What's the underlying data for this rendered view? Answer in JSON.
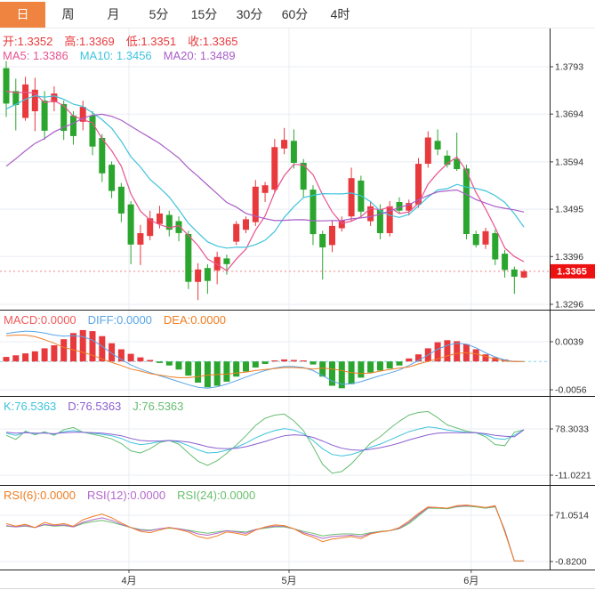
{
  "tabs": {
    "items": [
      {
        "label": "日",
        "selected": true
      },
      {
        "label": "周",
        "selected": false
      },
      {
        "label": "月",
        "selected": false
      },
      {
        "label": "5分",
        "selected": false
      },
      {
        "label": "15分",
        "selected": false
      },
      {
        "label": "30分",
        "selected": false
      },
      {
        "label": "60分",
        "selected": false
      },
      {
        "label": "4时",
        "selected": false
      }
    ]
  },
  "ohlc_header": {
    "open": "开:1.3352",
    "high": "高:1.3369",
    "low": "低:1.3351",
    "close": "收:1.3365"
  },
  "ma_header": {
    "ma5": "MA5: 1.3386",
    "ma10": "MA10: 1.3456",
    "ma20": "MA20: 1.3489"
  },
  "macd_header": {
    "macd": "MACD:0.0000",
    "diff": "DIFF:0.0000",
    "dea": "DEA:0.0000"
  },
  "kdj_header": {
    "k": "K:76.5363",
    "d": "D:76.5363",
    "j": "J:76.5363"
  },
  "rsi_header": {
    "rsi6": "RSI(6):0.0000",
    "rsi12": "RSI(12):0.0000",
    "rsi24": "RSI(24):0.0000"
  },
  "price_flag": "1.3365",
  "colors": {
    "up": "#e8393d",
    "down": "#2aa52e",
    "tab_active_bg": "#ef8440",
    "ohlc_text": "#e8393d",
    "ma5": "#e8538f",
    "ma10": "#3fc3dc",
    "ma20": "#a95ec8",
    "diff": "#58a5e8",
    "dea": "#ef7d22",
    "macd_text": "#ef5a5a",
    "k": "#3fc3dc",
    "d": "#8a5fd0",
    "j": "#67bd72",
    "rsi6": "#ef7d22",
    "rsi12": "#b468cc",
    "rsi24": "#6abf6e",
    "grid": "#e8eef5",
    "divider": "#222222",
    "axis_text": "#333333",
    "dotted_line": "#f08080",
    "zero_dash": "#86d3e8",
    "flag_bg": "#ee1111"
  },
  "chart_data": [
    {
      "type": "candlestick",
      "name": "price",
      "legend": [
        "MA5",
        "MA10",
        "MA20"
      ],
      "ma_periods": [
        5,
        10,
        20
      ],
      "y_ticks": [
        1.3793,
        1.3694,
        1.3594,
        1.3495,
        1.3396,
        1.3296
      ],
      "current_price": 1.3365,
      "x_ticks": [
        {
          "label": "4月",
          "index": 12.8
        },
        {
          "label": "5月",
          "index": 29.5
        },
        {
          "label": "6月",
          "index": 48.5
        }
      ],
      "prior_closes": [
        1.34,
        1.342,
        1.344,
        1.345,
        1.346,
        1.347,
        1.348,
        1.349,
        1.351,
        1.3526,
        1.362,
        1.365,
        1.367,
        1.369,
        1.371,
        1.373,
        1.375,
        1.3755,
        1.3759
      ],
      "ohlc": [
        [
          1.379,
          1.3805,
          1.3688,
          1.3716
        ],
        [
          1.3742,
          1.3768,
          1.366,
          1.3713
        ],
        [
          1.3686,
          1.3772,
          1.368,
          1.3756
        ],
        [
          1.37,
          1.377,
          1.3658,
          1.3745
        ],
        [
          1.3722,
          1.3742,
          1.364,
          1.3659
        ],
        [
          1.3719,
          1.3752,
          1.37,
          1.3737
        ],
        [
          1.3715,
          1.3722,
          1.364,
          1.3659
        ],
        [
          1.3691,
          1.37,
          1.363,
          1.3648
        ],
        [
          1.3678,
          1.3722,
          1.366,
          1.3709
        ],
        [
          1.3691,
          1.37,
          1.3608,
          1.3626
        ],
        [
          1.3644,
          1.3652,
          1.3552,
          1.357
        ],
        [
          1.3588,
          1.3595,
          1.3518,
          1.3533
        ],
        [
          1.3542,
          1.355,
          1.3468,
          1.3486
        ],
        [
          1.3505,
          1.3512,
          1.338,
          1.3421
        ],
        [
          1.3421,
          1.3462,
          1.3378,
          1.3445
        ],
        [
          1.3439,
          1.3492,
          1.343,
          1.3476
        ],
        [
          1.3464,
          1.3502,
          1.3455,
          1.3486
        ],
        [
          1.3483,
          1.3492,
          1.3438,
          1.3452
        ],
        [
          1.347,
          1.348,
          1.3428,
          1.3445
        ],
        [
          1.3443,
          1.345,
          1.3328,
          1.3343
        ],
        [
          1.3343,
          1.3382,
          1.3305,
          1.3369
        ],
        [
          1.3372,
          1.338,
          1.3318,
          1.3345
        ],
        [
          1.3367,
          1.3406,
          1.3338,
          1.3395
        ],
        [
          1.3392,
          1.34,
          1.3358,
          1.338
        ],
        [
          1.3427,
          1.347,
          1.342,
          1.3464
        ],
        [
          1.3452,
          1.348,
          1.3445,
          1.3474
        ],
        [
          1.3468,
          1.3556,
          1.346,
          1.3542
        ],
        [
          1.3529,
          1.3552,
          1.351,
          1.3545
        ],
        [
          1.3536,
          1.3642,
          1.353,
          1.3625
        ],
        [
          1.3622,
          1.3665,
          1.361,
          1.364
        ],
        [
          1.3638,
          1.3662,
          1.358,
          1.3592
        ],
        [
          1.3592,
          1.36,
          1.352,
          1.3536
        ],
        [
          1.3536,
          1.3545,
          1.342,
          1.3443
        ],
        [
          1.3443,
          1.345,
          1.3348,
          1.3415
        ],
        [
          1.342,
          1.3472,
          1.3405,
          1.346
        ],
        [
          1.3455,
          1.348,
          1.3448,
          1.3472
        ],
        [
          1.348,
          1.3582,
          1.347,
          1.356
        ],
        [
          1.3555,
          1.3565,
          1.3478,
          1.349
        ],
        [
          1.347,
          1.3512,
          1.346,
          1.3501
        ],
        [
          1.3495,
          1.3505,
          1.3432,
          1.3445
        ],
        [
          1.3445,
          1.3512,
          1.3438,
          1.3501
        ],
        [
          1.351,
          1.352,
          1.3485,
          1.3492
        ],
        [
          1.3492,
          1.3515,
          1.3482,
          1.3508
        ],
        [
          1.3505,
          1.3602,
          1.3498,
          1.359
        ],
        [
          1.359,
          1.3658,
          1.3582,
          1.3645
        ],
        [
          1.3638,
          1.3662,
          1.3608,
          1.362
        ],
        [
          1.3607,
          1.3618,
          1.3582,
          1.3588
        ],
        [
          1.36,
          1.3655,
          1.3575,
          1.3579
        ],
        [
          1.358,
          1.3588,
          1.3432,
          1.3443
        ],
        [
          1.3443,
          1.345,
          1.3415,
          1.342
        ],
        [
          1.3421,
          1.3456,
          1.3412,
          1.3449
        ],
        [
          1.3445,
          1.3452,
          1.3378,
          1.339
        ],
        [
          1.3402,
          1.341,
          1.3352,
          1.3368
        ],
        [
          1.3369,
          1.3375,
          1.3318,
          1.3354
        ],
        [
          1.3352,
          1.3369,
          1.3351,
          1.3365
        ]
      ]
    },
    {
      "type": "bar",
      "name": "MACD",
      "y_ticks": [
        0.0039,
        -0.0056
      ],
      "hist": [
        0.0009,
        0.0012,
        0.0016,
        0.002,
        0.0026,
        0.0032,
        0.0044,
        0.0056,
        0.0062,
        0.006,
        0.005,
        0.0036,
        0.0024,
        0.0015,
        0.0008,
        0.0003,
        -0.0003,
        -0.0008,
        -0.0016,
        -0.0028,
        -0.0042,
        -0.0051,
        -0.0048,
        -0.004,
        -0.003,
        -0.002,
        -0.0012,
        -0.0005,
        0.0002,
        0.0004,
        0.0003,
        0.0002,
        -0.0006,
        -0.003,
        -0.0048,
        -0.0053,
        -0.0045,
        -0.0032,
        -0.0022,
        -0.0018,
        -0.0014,
        -0.0008,
        0.0006,
        0.0014,
        0.0026,
        0.0038,
        0.0042,
        0.004,
        0.0034,
        0.0024,
        0.0014,
        0.0008,
        0.0004,
        0.0001,
        0.0
      ],
      "diff": [
        0.0055,
        0.0058,
        0.006,
        0.0059,
        0.0056,
        0.0052,
        0.005,
        0.0051,
        0.0049,
        0.0042,
        0.003,
        0.0016,
        0.0004,
        -0.0007,
        -0.0015,
        -0.0022,
        -0.0028,
        -0.0034,
        -0.004,
        -0.0046,
        -0.0051,
        -0.0053,
        -0.005,
        -0.0045,
        -0.0038,
        -0.0031,
        -0.0024,
        -0.0018,
        -0.0013,
        -0.001,
        -0.001,
        -0.0012,
        -0.0018,
        -0.0028,
        -0.0039,
        -0.0045,
        -0.0044,
        -0.004,
        -0.0034,
        -0.0028,
        -0.0023,
        -0.0017,
        -0.0008,
        0.0002,
        0.0013,
        0.0024,
        0.0032,
        0.0036,
        0.0034,
        0.0027,
        0.0017,
        0.0009,
        0.0003,
        0.0,
        0.0
      ],
      "dea": [
        0.0051,
        0.0052,
        0.0052,
        0.0049,
        0.0043,
        0.0036,
        0.0028,
        0.0023,
        0.0018,
        0.0012,
        0.0005,
        -0.0002,
        -0.0008,
        -0.0015,
        -0.0019,
        -0.0024,
        -0.0027,
        -0.003,
        -0.0032,
        -0.0032,
        -0.003,
        -0.0027,
        -0.0026,
        -0.0025,
        -0.0023,
        -0.0021,
        -0.0018,
        -0.0016,
        -0.0014,
        -0.0012,
        -0.0012,
        -0.0013,
        -0.0015,
        -0.0013,
        -0.0015,
        -0.0018,
        -0.0022,
        -0.0024,
        -0.0023,
        -0.0019,
        -0.0016,
        -0.0013,
        -0.0011,
        -0.0005,
        0.0,
        0.0005,
        0.0011,
        0.0016,
        0.0017,
        0.0015,
        0.001,
        0.0005,
        0.0001,
        0.0,
        0.0
      ]
    },
    {
      "type": "line",
      "name": "KDJ",
      "y_ticks": [
        78.3033,
        -11.0221
      ],
      "k": [
        70,
        66,
        72,
        69,
        71,
        68,
        73,
        75,
        72,
        70,
        68,
        65,
        60,
        52,
        48,
        50,
        54,
        56,
        53,
        46,
        38,
        32,
        33,
        37,
        43,
        51,
        61,
        69,
        75,
        79,
        76,
        69,
        56,
        40,
        29,
        26,
        29,
        35,
        43,
        49,
        57,
        65,
        73,
        78,
        82,
        80,
        76,
        74,
        72,
        71,
        67,
        60,
        58,
        66,
        76.5
      ],
      "d": [
        72,
        70,
        71,
        70,
        70,
        69,
        71,
        72,
        72,
        71,
        70,
        68,
        65,
        60,
        56,
        55,
        55,
        56,
        55,
        53,
        49,
        44,
        41,
        40,
        41,
        44,
        49,
        54,
        60,
        65,
        67,
        66,
        62,
        55,
        47,
        41,
        38,
        37,
        39,
        42,
        46,
        51,
        57,
        62,
        67,
        70,
        71,
        71,
        71,
        71,
        69,
        66,
        64,
        63,
        76.5
      ],
      "j": [
        66,
        58,
        74,
        67,
        73,
        66,
        77,
        81,
        72,
        68,
        64,
        59,
        50,
        36,
        32,
        40,
        52,
        56,
        49,
        32,
        16,
        8,
        17,
        31,
        47,
        65,
        85,
        99,
        105,
        107,
        94,
        75,
        44,
        10,
        -7,
        -4,
        11,
        31,
        51,
        63,
        79,
        93,
        105,
        110,
        112,
        100,
        86,
        80,
        74,
        71,
        63,
        48,
        46,
        72,
        76.5
      ]
    },
    {
      "type": "line",
      "name": "RSI",
      "y_ticks": [
        71.0514,
        -0.82
      ],
      "rsi6": [
        58,
        54,
        57,
        52,
        60,
        56,
        58,
        54,
        64,
        69,
        73,
        67,
        59,
        52,
        46,
        44,
        48,
        52,
        49,
        45,
        38,
        35,
        39,
        45,
        43,
        40,
        48,
        53,
        56,
        55,
        50,
        42,
        37,
        30,
        34,
        36,
        38,
        35,
        42,
        45,
        47,
        52,
        62,
        74,
        84,
        83,
        82,
        86,
        87,
        85,
        83,
        86,
        45,
        0,
        0
      ],
      "rsi12": [
        55,
        53,
        55,
        52,
        57,
        55,
        56,
        53,
        60,
        64,
        67,
        63,
        57,
        52,
        48,
        47,
        50,
        52,
        50,
        47,
        42,
        40,
        43,
        47,
        45,
        43,
        49,
        52,
        54,
        54,
        50,
        44,
        40,
        35,
        38,
        39,
        40,
        38,
        43,
        45,
        47,
        51,
        60,
        72,
        83,
        83,
        82,
        85,
        86,
        85,
        83,
        85,
        47,
        0,
        0
      ],
      "rsi24": [
        54,
        53,
        54,
        52,
        56,
        54,
        55,
        53,
        58,
        61,
        63,
        60,
        56,
        52,
        49,
        48,
        50,
        51,
        50,
        48,
        45,
        43,
        45,
        47,
        46,
        45,
        49,
        51,
        53,
        53,
        50,
        46,
        43,
        39,
        41,
        42,
        42,
        41,
        44,
        46,
        47,
        50,
        58,
        70,
        82,
        82,
        81,
        84,
        85,
        84,
        82,
        84,
        48,
        0,
        0
      ]
    }
  ]
}
